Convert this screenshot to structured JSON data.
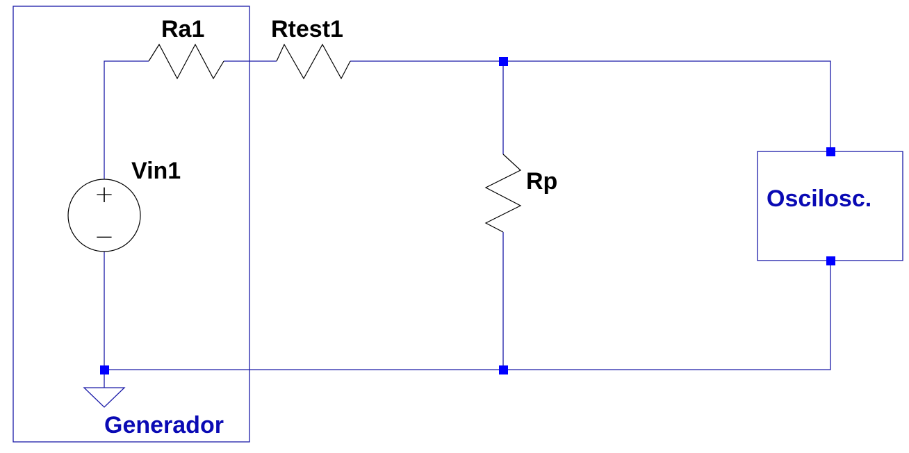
{
  "components": {
    "source": "Vin1",
    "series_resistor_1": "Ra1",
    "series_resistor_2": "Rtest1",
    "parallel_resistor": "Rp"
  },
  "blocks": {
    "generator": "Generador",
    "oscilloscope": "Oscilosc."
  },
  "source_symbols": {
    "plus": "+",
    "minus": "−"
  },
  "colors": {
    "wire": "#1a1aa8",
    "node": "#0000ff",
    "component": "#000000",
    "block_label": "#0a0ab4"
  }
}
